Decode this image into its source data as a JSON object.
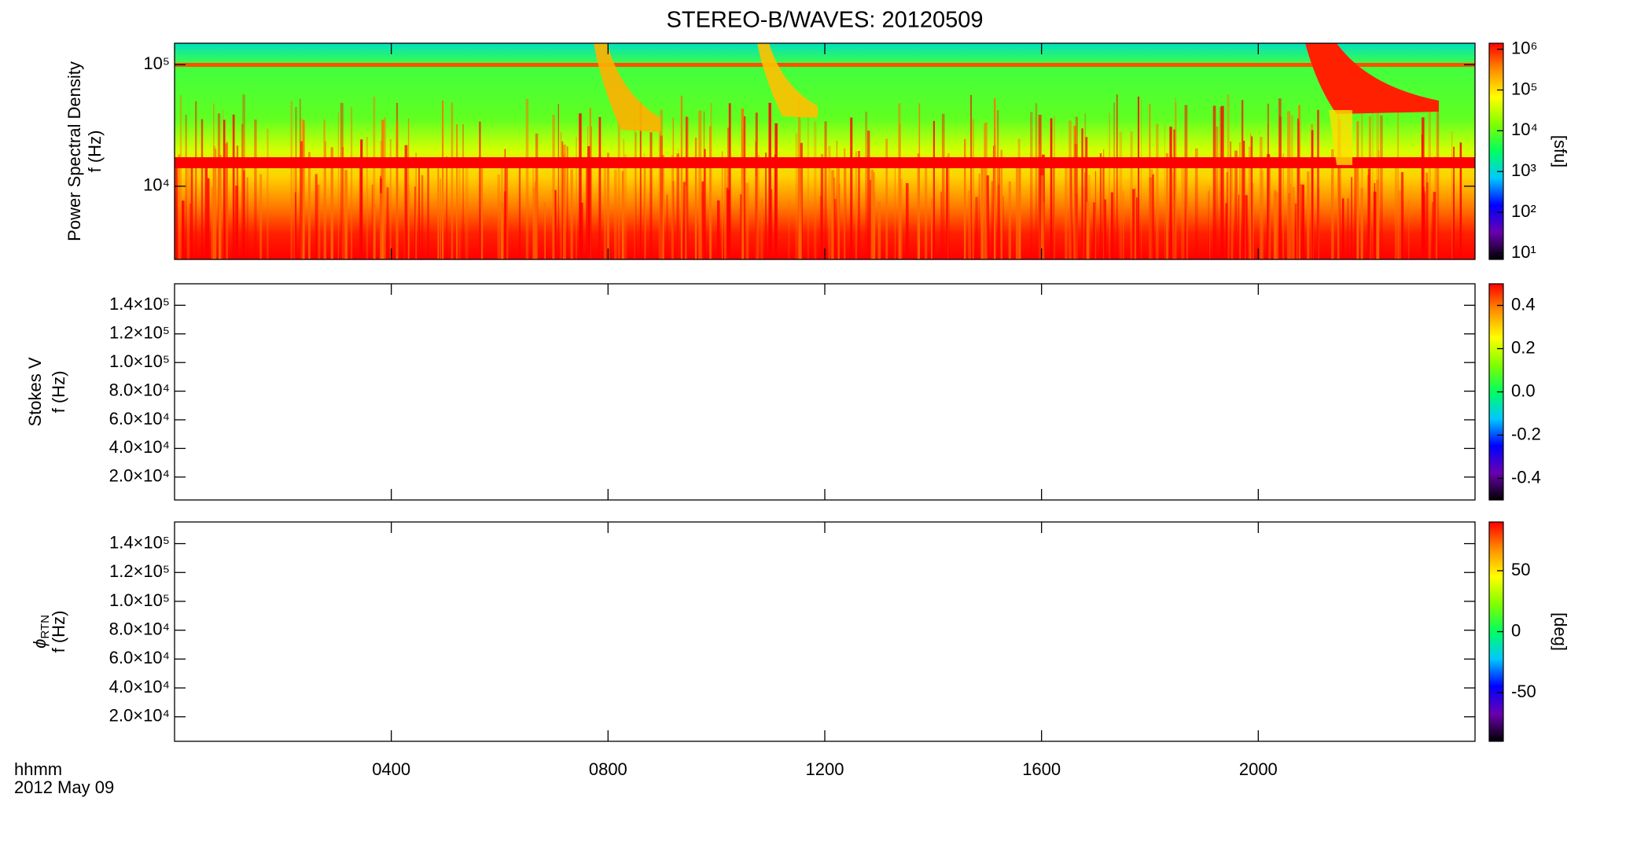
{
  "chart_data": [
    {
      "type": "heatmap",
      "title": "STEREO-B/WAVES: 20120509",
      "ylabel": "Power Spectral Density",
      "ylabel2": "f (Hz)",
      "log_y": true,
      "ylim": [
        2500,
        150000
      ],
      "yticks": [
        {
          "value": 10000,
          "label": "10⁴"
        },
        {
          "value": 100000,
          "label": "10⁵"
        }
      ],
      "xlim": [
        0,
        24
      ],
      "colorbar": {
        "label": "[sfu]",
        "log": true,
        "lim": [
          7,
          1400000
        ],
        "ticks": [
          {
            "value": 10,
            "label": "10¹"
          },
          {
            "value": 100,
            "label": "10²"
          },
          {
            "value": 1000,
            "label": "10³"
          },
          {
            "value": 10000,
            "label": "10⁴"
          },
          {
            "value": 100000,
            "label": "10⁵"
          },
          {
            "value": 1000000,
            "label": "10⁶"
          }
        ]
      },
      "colormap": [
        "#000000",
        "#6a00b0",
        "#0000ff",
        "#00c8ff",
        "#00ff60",
        "#80ff00",
        "#ffff00",
        "#ff9000",
        "#ff0000"
      ]
    },
    {
      "type": "heatmap",
      "ylabel": "Stokes V",
      "ylabel2": "f (Hz)",
      "log_y": false,
      "ylim": [
        4000,
        155000
      ],
      "yticks": [
        {
          "value": 20000,
          "label": "2.0×10⁴"
        },
        {
          "value": 40000,
          "label": "4.0×10⁴"
        },
        {
          "value": 60000,
          "label": "6.0×10⁴"
        },
        {
          "value": 80000,
          "label": "8.0×10⁴"
        },
        {
          "value": 100000,
          "label": "1.0×10⁵"
        },
        {
          "value": 120000,
          "label": "1.2×10⁵"
        },
        {
          "value": 140000,
          "label": "1.4×10⁵"
        }
      ],
      "xlim": [
        0,
        24
      ],
      "colorbar": {
        "log": false,
        "lim": [
          -0.5,
          0.5
        ],
        "ticks": [
          -0.4,
          -0.2,
          {
            "value": 0,
            "label": "0.0"
          },
          0.2,
          0.4
        ]
      },
      "colormap": [
        "#000000",
        "#6a00b0",
        "#0000ff",
        "#00c8ff",
        "#00ff60",
        "#80ff00",
        "#ffff00",
        "#ff9000",
        "#ff0000"
      ]
    },
    {
      "type": "heatmap",
      "ylabel": "ϕ",
      "ylabel_sub": "RTN",
      "ylabel2": "f (Hz)",
      "log_y": false,
      "ylim": [
        3000,
        155000
      ],
      "yticks": [
        {
          "value": 20000,
          "label": "2.0×10⁴"
        },
        {
          "value": 40000,
          "label": "4.0×10⁴"
        },
        {
          "value": 60000,
          "label": "6.0×10⁴"
        },
        {
          "value": 80000,
          "label": "8.0×10⁴"
        },
        {
          "value": 100000,
          "label": "1.0×10⁵"
        },
        {
          "value": 120000,
          "label": "1.2×10⁵"
        },
        {
          "value": 140000,
          "label": "1.4×10⁵"
        }
      ],
      "xlim": [
        0,
        24
      ],
      "xticks": [
        {
          "value": 4,
          "label": "0400"
        },
        {
          "value": 8,
          "label": "0800"
        },
        {
          "value": 12,
          "label": "1200"
        },
        {
          "value": 16,
          "label": "1600"
        },
        {
          "value": 20,
          "label": "2000"
        }
      ],
      "xlabel": "hhmm",
      "xlabel2": "2012 May 09",
      "colorbar": {
        "label": "[deg]",
        "log": false,
        "lim": [
          -90,
          90
        ],
        "ticks": [
          -50,
          0,
          50
        ]
      },
      "colormap": [
        "#000000",
        "#6a00b0",
        "#0000ff",
        "#00c8ff",
        "#00ff60",
        "#80ff00",
        "#ffff00",
        "#ff9000",
        "#ff0000"
      ]
    }
  ]
}
